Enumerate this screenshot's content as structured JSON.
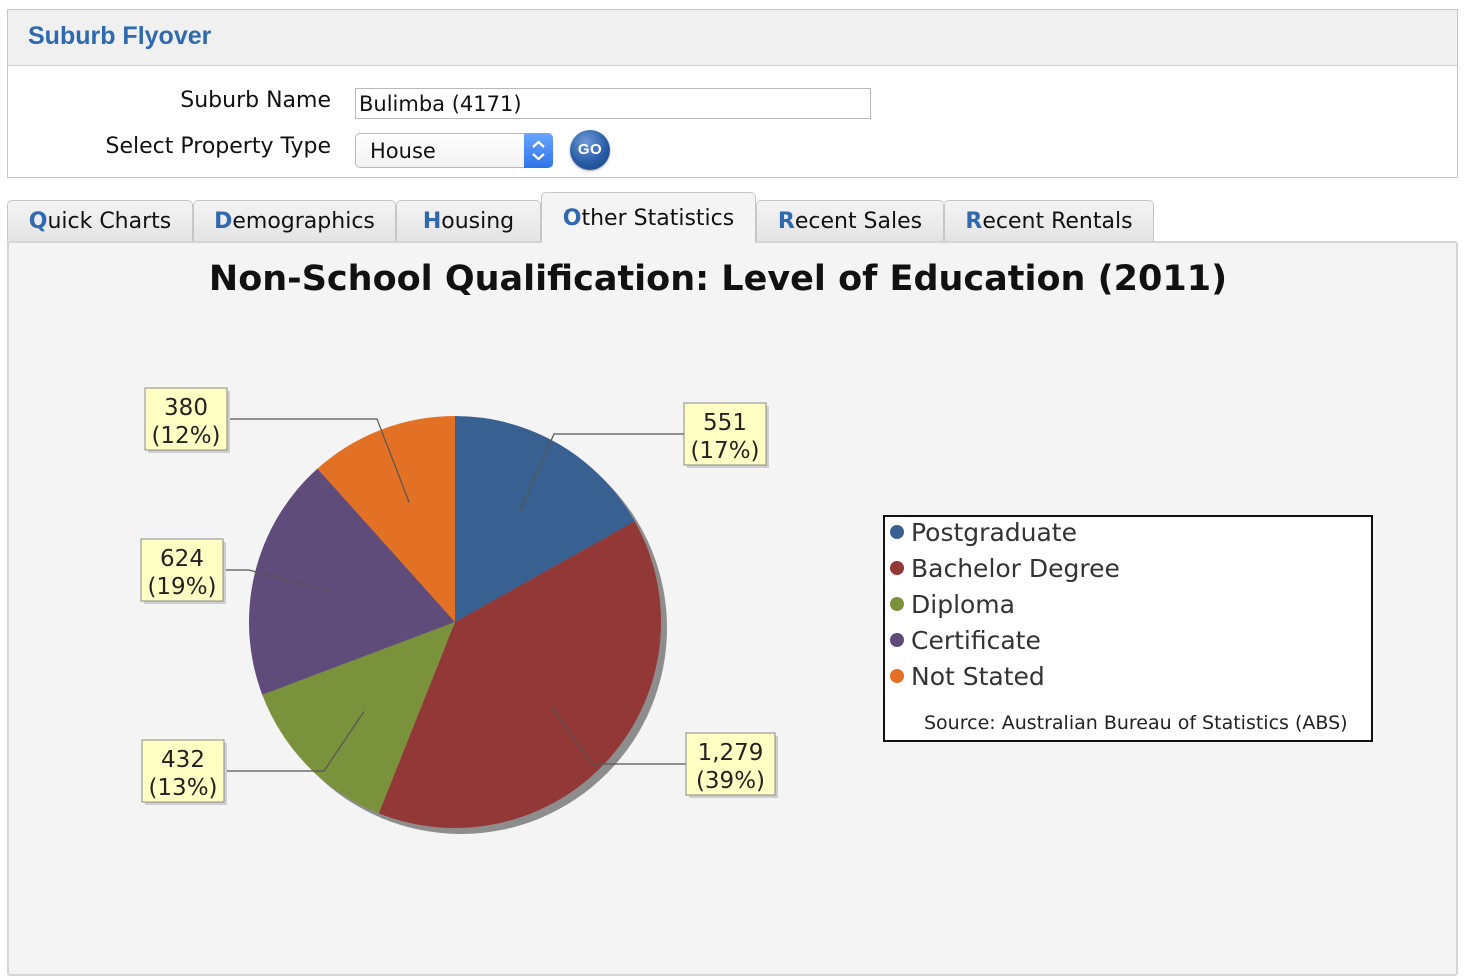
{
  "panel": {
    "title": "Suburb Flyover",
    "suburb_label": "Suburb Name",
    "suburb_value": "Bulimba (4171)",
    "property_type_label": "Select Property Type",
    "property_type_value": "House",
    "go_label": "GO"
  },
  "tabs": [
    {
      "hot": "Q",
      "rest": "uick Charts"
    },
    {
      "hot": "D",
      "rest": "emographics"
    },
    {
      "hot": "H",
      "rest": "ousing"
    },
    {
      "hot": "O",
      "rest": "ther Statistics"
    },
    {
      "hot": "R",
      "rest": "ecent Sales"
    },
    {
      "hot": "R",
      "rest": "ecent Rentals"
    }
  ],
  "active_tab_index": 3,
  "chart_data": {
    "type": "pie",
    "title": "Non-School Qualification: Level of Education (2011)",
    "source": "Source: Australian Bureau of Statistics (ABS)",
    "legend_position": "right",
    "slices": [
      {
        "name": "Postgraduate",
        "value": 551,
        "value_label": "551",
        "percent_label": "(17%)",
        "color": "#386192"
      },
      {
        "name": "Bachelor Degree",
        "value": 1279,
        "value_label": "1,279",
        "percent_label": "(39%)",
        "color": "#923836"
      },
      {
        "name": "Diploma",
        "value": 432,
        "value_label": "432",
        "percent_label": "(13%)",
        "color": "#7b923d"
      },
      {
        "name": "Certificate",
        "value": 624,
        "value_label": "624",
        "percent_label": "(19%)",
        "color": "#604c7b"
      },
      {
        "name": "Not Stated",
        "value": 380,
        "value_label": "380",
        "percent_label": "(12%)",
        "color": "#e27125"
      }
    ]
  }
}
